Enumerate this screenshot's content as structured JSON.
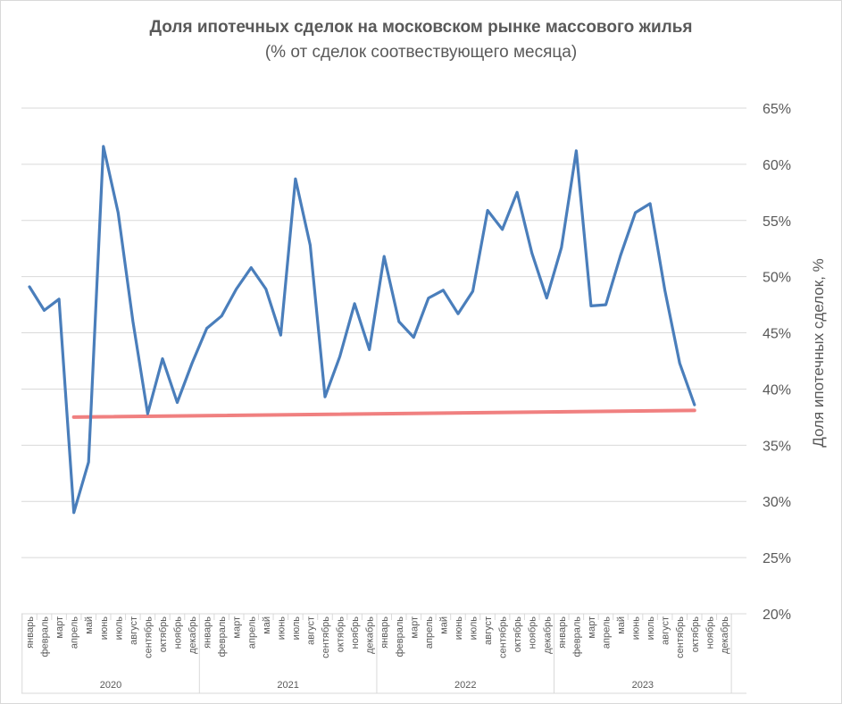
{
  "chart_data": {
    "type": "line",
    "title": "Доля ипотечных сделок на московском рынке массового жилья",
    "subtitle": "(% от сделок соотвествующего месяца)",
    "ylabel": "Доля ипотечных сделок, %",
    "ylim": [
      20,
      65
    ],
    "y_ticks": [
      "20%",
      "25%",
      "30%",
      "35%",
      "40%",
      "45%",
      "50%",
      "55%",
      "60%",
      "65%"
    ],
    "y_axis_position": "right",
    "grid": true,
    "months": [
      "январь",
      "февраль",
      "март",
      "апрель",
      "май",
      "июнь",
      "июль",
      "август",
      "сентябрь",
      "октябрь",
      "ноябрь",
      "декабрь"
    ],
    "years": [
      "2020",
      "2021",
      "2022",
      "2023"
    ],
    "series": [
      {
        "color": "#4a7ebb",
        "values": [
          49.1,
          47.0,
          48.0,
          29.0,
          33.5,
          61.6,
          55.7,
          46.0,
          37.8,
          42.7,
          38.8,
          42.3,
          45.4,
          46.5,
          48.9,
          50.8,
          48.9,
          44.8,
          58.7,
          52.8,
          39.3,
          42.9,
          47.6,
          43.5,
          51.8,
          46.0,
          44.6,
          48.1,
          48.8,
          46.7,
          48.7,
          55.9,
          54.2,
          57.5,
          52.1,
          48.1,
          52.6,
          61.2,
          47.4,
          47.5,
          51.9,
          55.7,
          56.5,
          48.8,
          42.3,
          38.6
        ]
      },
      {
        "color": "#f08080",
        "trendline": true,
        "from_index": 3,
        "to_index": 45,
        "values": [
          37.5,
          38.1
        ]
      }
    ]
  }
}
